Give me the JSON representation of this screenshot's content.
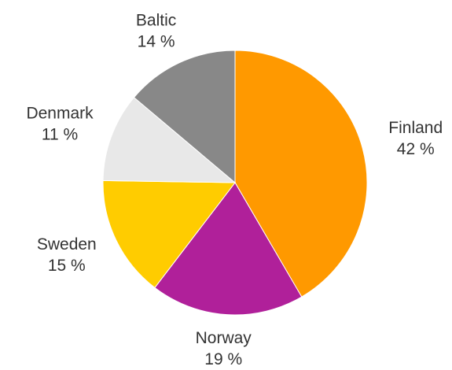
{
  "chart_data": {
    "type": "pie",
    "categories": [
      "Finland",
      "Norway",
      "Sweden",
      "Denmark",
      "Baltic"
    ],
    "values": [
      42,
      19,
      15,
      11,
      14
    ],
    "value_labels": [
      "42 %",
      "19 %",
      "15 %",
      "11 %",
      "14 %"
    ],
    "colors": [
      "#ff9900",
      "#b0209a",
      "#ffcc00",
      "#e8e8e8",
      "#888888"
    ]
  }
}
